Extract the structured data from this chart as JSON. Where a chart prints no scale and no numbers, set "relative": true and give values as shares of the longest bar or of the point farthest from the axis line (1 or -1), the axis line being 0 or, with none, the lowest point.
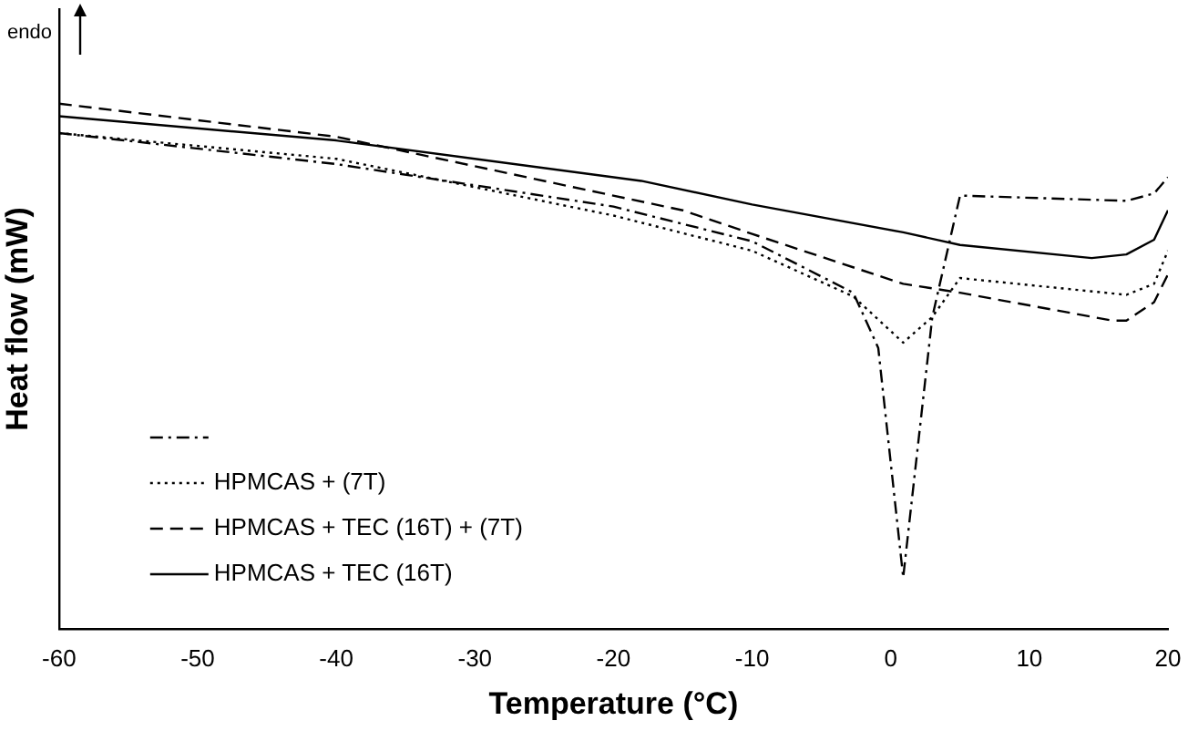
{
  "chart_data": {
    "type": "line",
    "xlabel": "Temperature (°C)",
    "ylabel": "Heat flow (mW)",
    "annotations": [
      "endo"
    ],
    "relative": true,
    "xlim": [
      -60,
      20
    ],
    "xticks": [
      -60,
      -50,
      -40,
      -30,
      -20,
      -10,
      0,
      10,
      20
    ],
    "grid": false,
    "legend": "bottom left",
    "marker": "none",
    "series": [
      {
        "color": "#000000",
        "line_style": "dashdot",
        "x": [
          -60,
          -40,
          -20,
          -10,
          -2.7,
          -0.9,
          0.9,
          3,
          5,
          17,
          19,
          20
        ],
        "values": [
          0.944,
          0.885,
          0.804,
          0.738,
          0.64,
          0.535,
          0.098,
          0.594,
          0.825,
          0.815,
          0.829,
          0.86
        ]
      },
      {
        "name": "HPMCAS + (7T)",
        "color": "#000000",
        "line_style": "dotted",
        "x": [
          -60,
          -40,
          -20,
          -10,
          -2.7,
          0.9,
          3,
          5,
          17,
          19,
          20
        ],
        "values": [
          0.944,
          0.895,
          0.787,
          0.72,
          0.633,
          0.545,
          0.594,
          0.668,
          0.636,
          0.657,
          0.72
        ]
      },
      {
        "name": "HPMCAS + TEC (16T) + (7T)",
        "color": "#000000",
        "line_style": "dashed",
        "x": [
          -60,
          -40,
          -22,
          -15,
          -10,
          0.9,
          5,
          16,
          17,
          19,
          20
        ],
        "values": [
          1,
          0.937,
          0.836,
          0.797,
          0.752,
          0.657,
          0.64,
          0.587,
          0.587,
          0.622,
          0.675
        ]
      },
      {
        "name": "HPMCAS + TEC (16T)",
        "color": "#000000",
        "line_style": "solid",
        "x": [
          -60,
          -40,
          -18,
          -10,
          0.9,
          5,
          14.5,
          17,
          19,
          20
        ],
        "values": [
          0.976,
          0.93,
          0.853,
          0.808,
          0.755,
          0.731,
          0.706,
          0.713,
          0.741,
          0.797
        ]
      }
    ]
  }
}
